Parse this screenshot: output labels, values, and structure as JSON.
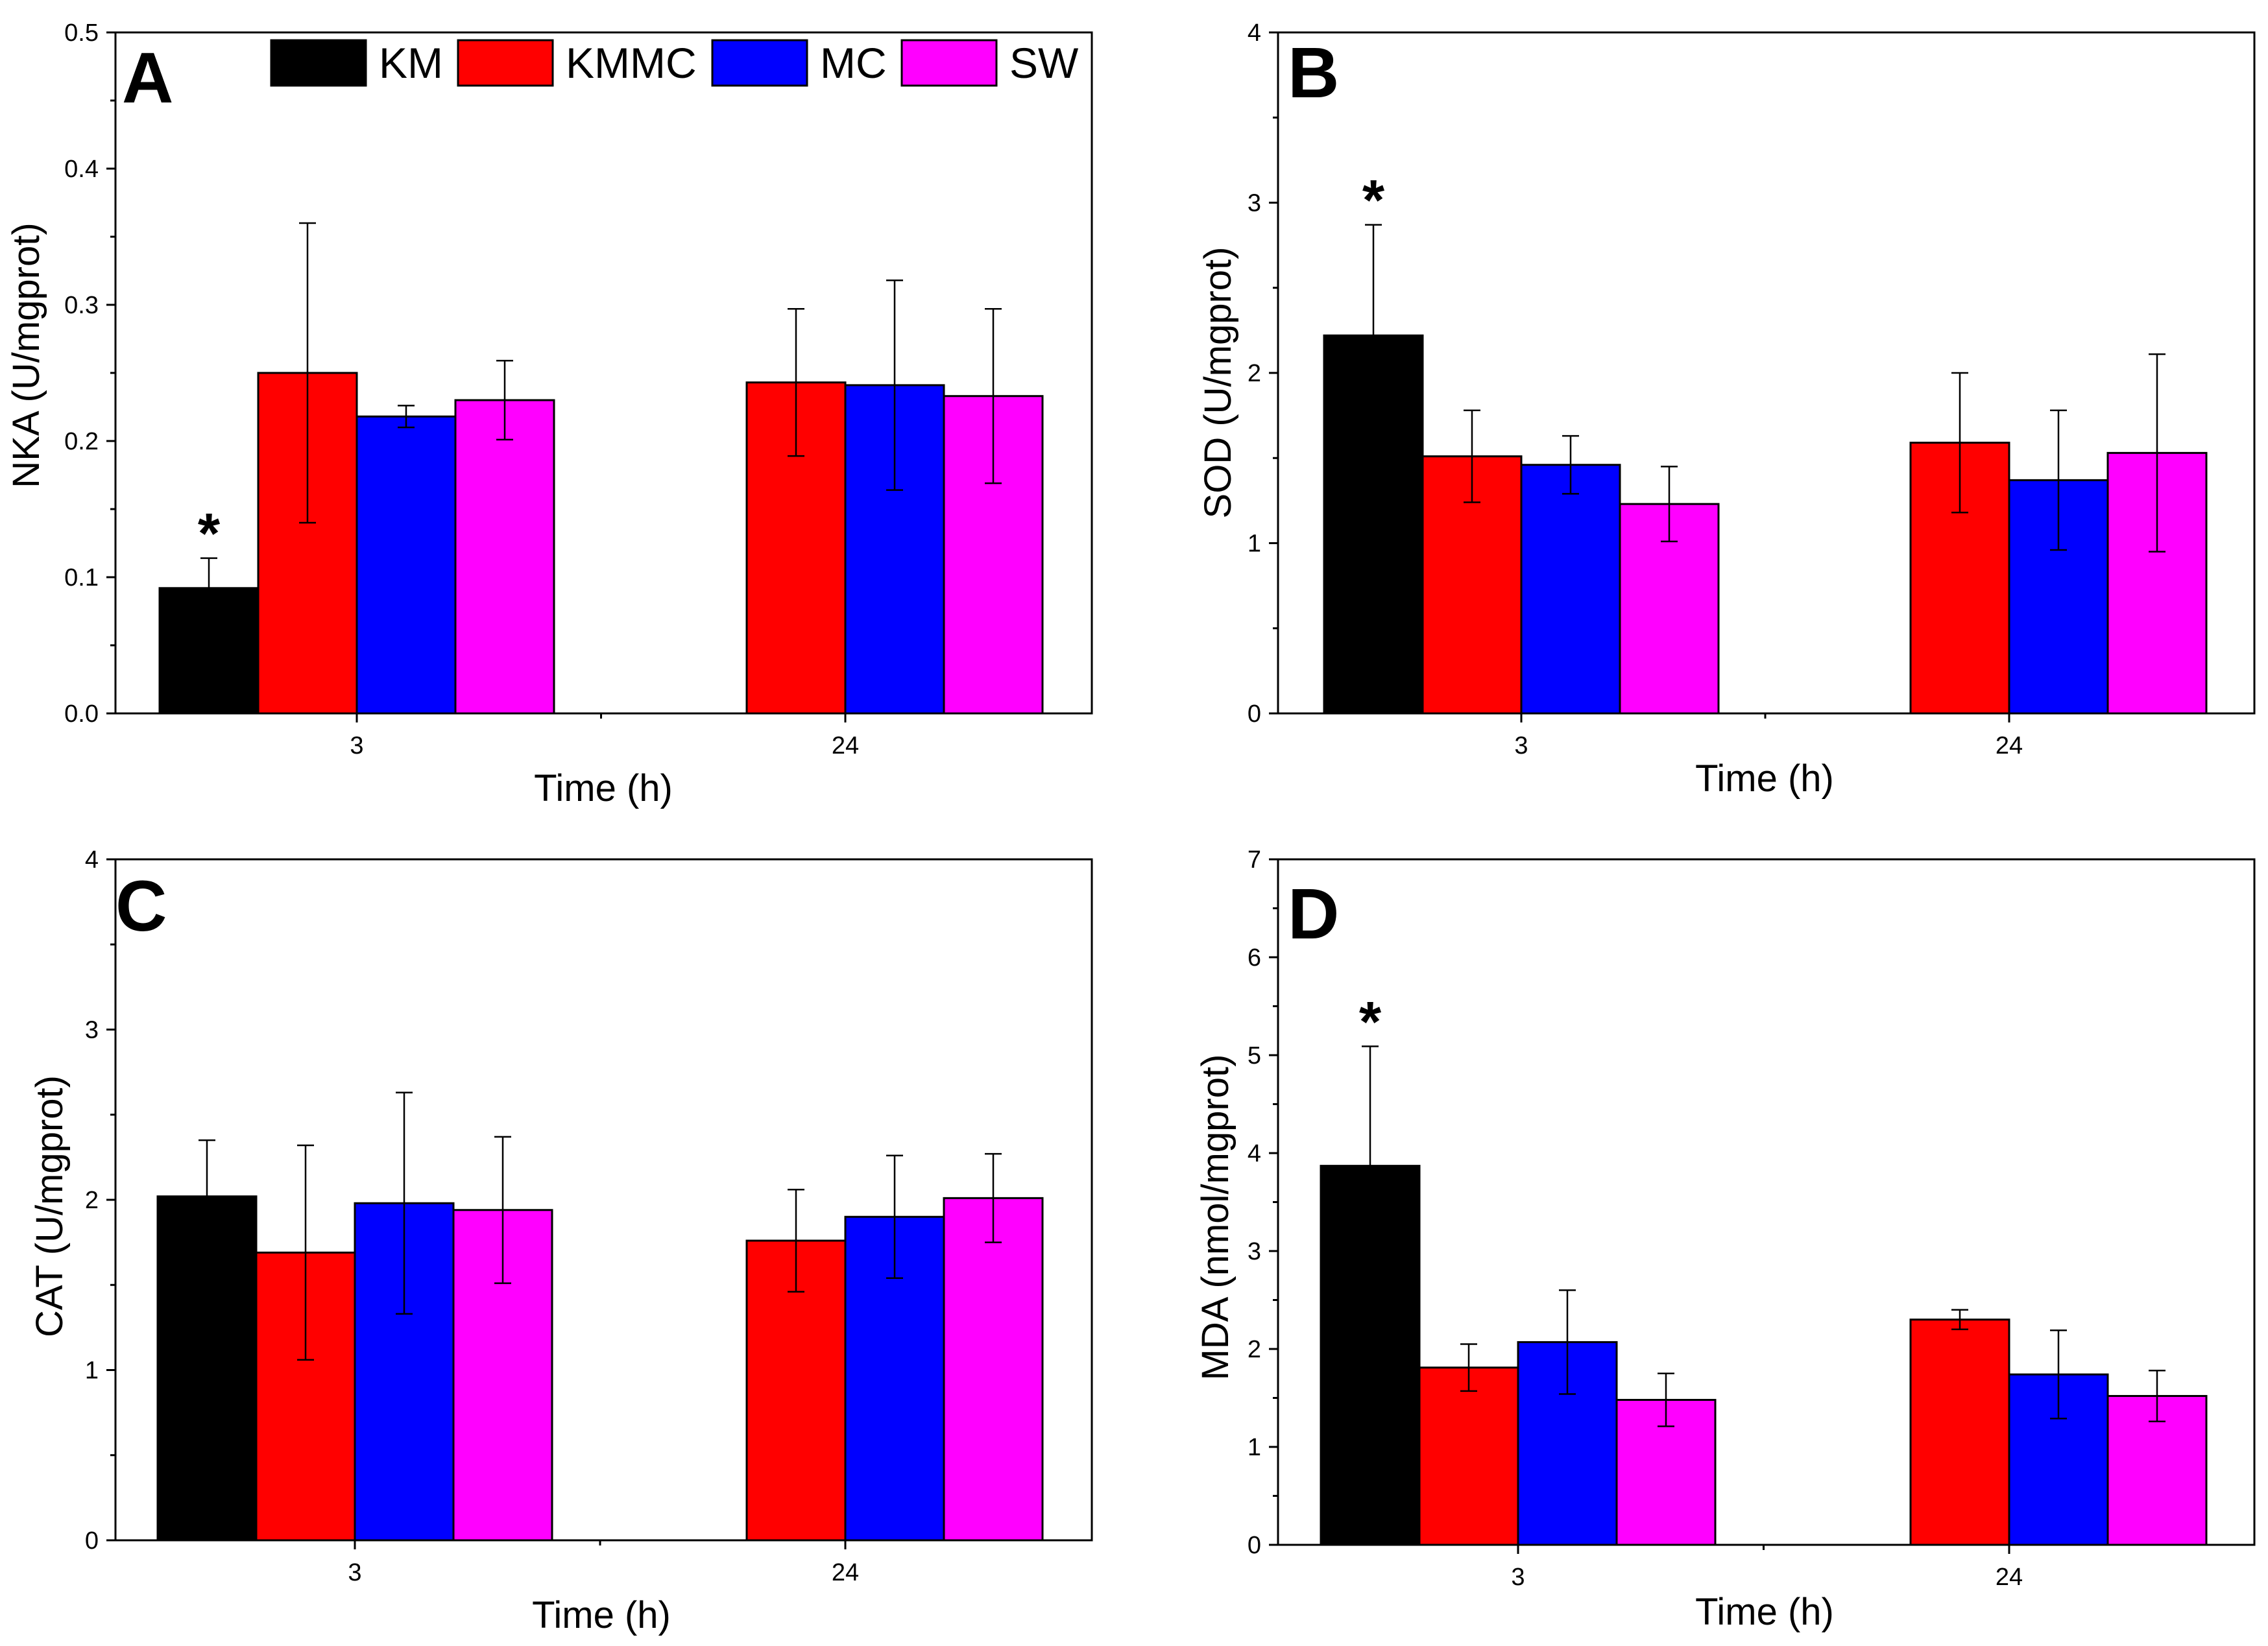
{
  "chart_data": [
    {
      "type": "bar",
      "panel_label": "A",
      "categories": [
        "3",
        "24"
      ],
      "xlabel": "Time (h)",
      "ylabel": "NKA (U/mgprot)",
      "ylim": [
        0,
        0.5
      ],
      "yticks": [
        "0.0",
        "0.1",
        "0.2",
        "0.3",
        "0.4",
        "0.5"
      ],
      "ytick_values": [
        0,
        0.1,
        0.2,
        0.3,
        0.4,
        0.5
      ],
      "series": [
        {
          "name": "KM",
          "color": "#000000",
          "values": [
            0.092,
            null
          ],
          "errors": [
            0.022,
            null
          ]
        },
        {
          "name": "KMMC",
          "color": "#ff0000",
          "values": [
            0.25,
            0.243
          ],
          "errors": [
            0.11,
            0.054
          ]
        },
        {
          "name": "MC",
          "color": "#0000ff",
          "values": [
            0.218,
            0.241
          ],
          "errors": [
            0.008,
            0.077
          ]
        },
        {
          "name": "SW",
          "color": "#ff00ff",
          "values": [
            0.23,
            0.233
          ],
          "errors": [
            0.029,
            0.064
          ]
        }
      ],
      "annotations": [
        {
          "text": "*",
          "series": 0,
          "category": 0
        }
      ],
      "legend": {
        "placement": "top",
        "labels": [
          "KM",
          "KMMC",
          "MC",
          "SW"
        ]
      }
    },
    {
      "type": "bar",
      "panel_label": "B",
      "categories": [
        "3",
        "24"
      ],
      "xlabel": "Time (h)",
      "ylabel": "SOD (U/mgprot)",
      "ylim": [
        0,
        4
      ],
      "yticks": [
        "0",
        "1",
        "2",
        "3",
        "4"
      ],
      "ytick_values": [
        0,
        1,
        2,
        3,
        4
      ],
      "series": [
        {
          "name": "KM",
          "color": "#000000",
          "values": [
            2.22,
            null
          ],
          "errors": [
            0.65,
            null
          ]
        },
        {
          "name": "KMMC",
          "color": "#ff0000",
          "values": [
            1.51,
            1.59
          ],
          "errors": [
            0.27,
            0.41
          ]
        },
        {
          "name": "MC",
          "color": "#0000ff",
          "values": [
            1.46,
            1.37
          ],
          "errors": [
            0.17,
            0.41
          ]
        },
        {
          "name": "SW",
          "color": "#ff00ff",
          "values": [
            1.23,
            1.53
          ],
          "errors": [
            0.22,
            0.58
          ]
        }
      ],
      "annotations": [
        {
          "text": "*",
          "series": 0,
          "category": 0
        }
      ]
    },
    {
      "type": "bar",
      "panel_label": "C",
      "categories": [
        "3",
        "24"
      ],
      "xlabel": "Time (h)",
      "ylabel": "CAT (U/mgprot)",
      "ylim": [
        0,
        4
      ],
      "yticks": [
        "0",
        "1",
        "2",
        "3",
        "4"
      ],
      "ytick_values": [
        0,
        1,
        2,
        3,
        4
      ],
      "series": [
        {
          "name": "KM",
          "color": "#000000",
          "values": [
            2.02,
            null
          ],
          "errors": [
            0.33,
            null
          ]
        },
        {
          "name": "KMMC",
          "color": "#ff0000",
          "values": [
            1.69,
            1.76
          ],
          "errors": [
            0.63,
            0.3
          ]
        },
        {
          "name": "MC",
          "color": "#0000ff",
          "values": [
            1.98,
            1.9
          ],
          "errors": [
            0.65,
            0.36
          ]
        },
        {
          "name": "SW",
          "color": "#ff00ff",
          "values": [
            1.94,
            2.01
          ],
          "errors": [
            0.43,
            0.26
          ]
        }
      ],
      "annotations": []
    },
    {
      "type": "bar",
      "panel_label": "D",
      "categories": [
        "3",
        "24"
      ],
      "xlabel": "Time (h)",
      "ylabel": "MDA (nmol/mgprot)",
      "ylim": [
        0,
        7
      ],
      "yticks": [
        "0",
        "1",
        "2",
        "3",
        "4",
        "5",
        "6",
        "7"
      ],
      "ytick_values": [
        0,
        1,
        2,
        3,
        4,
        5,
        6,
        7
      ],
      "series": [
        {
          "name": "KM",
          "color": "#000000",
          "values": [
            3.87,
            null
          ],
          "errors": [
            1.22,
            null
          ]
        },
        {
          "name": "KMMC",
          "color": "#ff0000",
          "values": [
            1.81,
            2.3
          ],
          "errors": [
            0.24,
            0.1
          ]
        },
        {
          "name": "MC",
          "color": "#0000ff",
          "values": [
            2.07,
            1.74
          ],
          "errors": [
            0.53,
            0.45
          ]
        },
        {
          "name": "SW",
          "color": "#ff00ff",
          "values": [
            1.48,
            1.52
          ],
          "errors": [
            0.27,
            0.26
          ]
        }
      ],
      "annotations": [
        {
          "text": "*",
          "series": 0,
          "category": 0
        }
      ]
    }
  ]
}
